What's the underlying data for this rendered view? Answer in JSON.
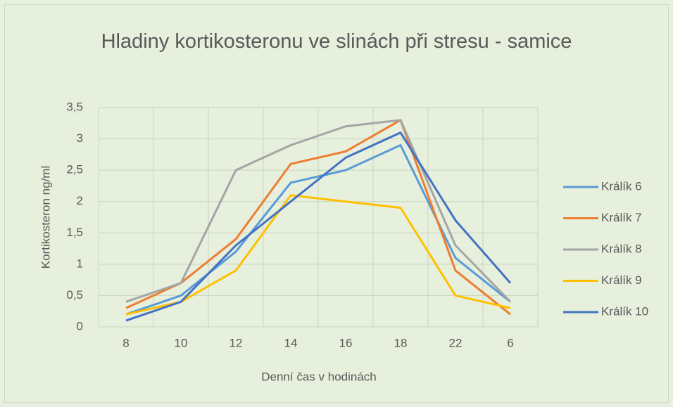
{
  "chart_data": {
    "type": "line",
    "title": "Hladiny kortikosteronu ve slinách při stresu - samice",
    "xlabel": "Denní čas v hodinách",
    "ylabel": "Kortikosteron ng/ml",
    "categories": [
      "8",
      "10",
      "12",
      "14",
      "16",
      "18",
      "22",
      "6"
    ],
    "series": [
      {
        "name": "Králík 6",
        "color": "#5b9bd5",
        "values": [
          0.2,
          0.5,
          1.2,
          2.3,
          2.5,
          2.9,
          1.1,
          0.4
        ]
      },
      {
        "name": "Králík 7",
        "color": "#ed7d31",
        "values": [
          0.3,
          0.7,
          1.4,
          2.6,
          2.8,
          3.3,
          0.9,
          0.2
        ]
      },
      {
        "name": "Králík 8",
        "color": "#a5a5a5",
        "values": [
          0.4,
          0.7,
          2.5,
          2.9,
          3.2,
          3.3,
          1.3,
          0.4
        ]
      },
      {
        "name": "Králík 9",
        "color": "#ffc000",
        "values": [
          0.2,
          0.4,
          0.9,
          2.1,
          2.0,
          1.9,
          0.5,
          0.3
        ]
      },
      {
        "name": "Králík 10",
        "color": "#4472c4",
        "values": [
          0.1,
          0.4,
          1.3,
          2.0,
          2.7,
          3.1,
          1.7,
          0.7
        ]
      }
    ],
    "ylim": [
      0,
      3.5
    ],
    "yticks": [
      0,
      {
        "value": 0.5,
        "label": "0,5"
      },
      1,
      {
        "value": 1.5,
        "label": "1,5"
      },
      2,
      {
        "value": 2.5,
        "label": "2,5"
      },
      3,
      {
        "value": 3.5,
        "label": "3,5"
      }
    ],
    "grid": true,
    "legend": "right"
  }
}
